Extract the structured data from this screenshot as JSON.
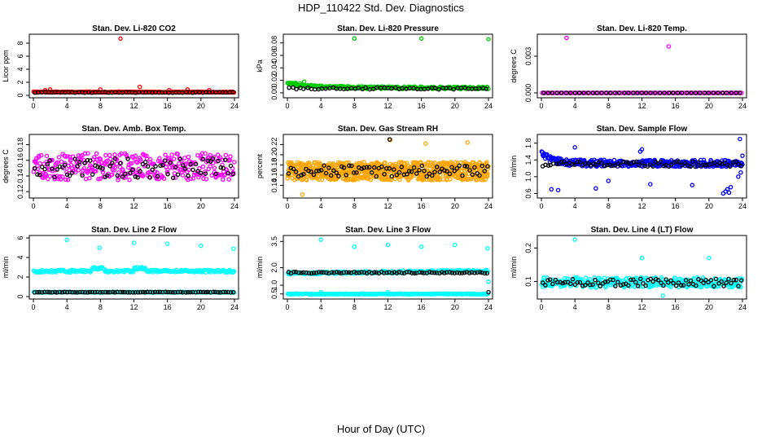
{
  "title": "HDP_110422  Std. Dev. Diagnostics",
  "xlabel": "Hour of Day (UTC)",
  "chart_data": [
    {
      "type": "scatter",
      "title": "Stan. Dev. Li-820 CO2",
      "ylabel": "Licor ppm",
      "xlim": [
        0,
        24
      ],
      "ylim": [
        0,
        9
      ],
      "xticks": [
        0,
        4,
        8,
        12,
        16,
        20,
        24
      ],
      "yticks": [
        0,
        2,
        4,
        6,
        8
      ],
      "series": [
        {
          "name": "all",
          "color": "#ff0000",
          "base": 0.5,
          "spread": 0.15,
          "count": 220,
          "x": [
            10.4,
            12.7,
            2.0,
            8.0,
            16.2,
            18.4,
            21.0,
            1.4
          ],
          "y": [
            8.7,
            1.3,
            0.9,
            0.9,
            0.8,
            0.9,
            0.8,
            0.8
          ]
        },
        {
          "name": "hourly",
          "color": "#000000",
          "base": 0.45,
          "spread": 0.1,
          "count": 60,
          "x": [],
          "y": []
        }
      ]
    },
    {
      "type": "scatter",
      "title": "Stan. Dev. Li-820 Pressure",
      "ylabel": "kPa",
      "xlim": [
        0,
        24
      ],
      "ylim": [
        -0.004,
        0.09
      ],
      "xticks": [
        0,
        4,
        8,
        12,
        16,
        20,
        24
      ],
      "yticks": [
        0.0,
        0.02,
        0.04,
        0.06,
        0.08
      ],
      "series": [
        {
          "name": "all",
          "color": "#00cc00",
          "base": 0.008,
          "spread": 0.004,
          "count": 260,
          "trend": "decay",
          "x": [
            8.0,
            16.0,
            24.0,
            1.0,
            2.0,
            1.5
          ],
          "y": [
            0.087,
            0.087,
            0.086,
            0.016,
            0.018,
            0.015
          ]
        },
        {
          "name": "hourly",
          "color": "#000000",
          "base": 0.007,
          "spread": 0.003,
          "count": 55,
          "x": [],
          "y": []
        }
      ]
    },
    {
      "type": "scatter",
      "title": "Stan. Dev. Li-820 Temp.",
      "ylabel": "degrees C",
      "xlim": [
        0,
        24
      ],
      "ylim": [
        -0.0002,
        0.0046
      ],
      "xticks": [
        0,
        4,
        8,
        12,
        16,
        20,
        24
      ],
      "yticks": [
        0.0,
        0.003
      ],
      "series": [
        {
          "name": "all",
          "color": "#ff00ff",
          "base": 0.0,
          "spread": 0.0,
          "count": 110,
          "x": [
            3.0,
            15.2
          ],
          "y": [
            0.0045,
            0.0038
          ]
        },
        {
          "name": "hourly",
          "color": "#000000",
          "base": 0.0,
          "spread": 0.0,
          "count": 45,
          "x": [],
          "y": []
        }
      ]
    },
    {
      "type": "scatter",
      "title": "Stan. Dev. Amb. Box Temp.",
      "ylabel": "degrees C",
      "xlim": [
        0,
        24
      ],
      "ylim": [
        0.115,
        0.19
      ],
      "xticks": [
        0,
        4,
        8,
        12,
        16,
        20,
        24
      ],
      "yticks": [
        0.12,
        0.14,
        0.16,
        0.18
      ],
      "series": [
        {
          "name": "all",
          "color": "#ff00ff",
          "base": 0.152,
          "spread": 0.034,
          "count": 330,
          "x": [],
          "y": []
        },
        {
          "name": "hourly",
          "color": "#000000",
          "base": 0.15,
          "spread": 0.025,
          "count": 80,
          "x": [],
          "y": []
        }
      ]
    },
    {
      "type": "scatter",
      "title": "Stan. Dev. Gas Stream RH",
      "ylabel": "percent",
      "xlim": [
        0,
        24
      ],
      "ylim": [
        0.12,
        0.235
      ],
      "xticks": [
        0,
        4,
        8,
        12,
        16,
        20,
        24
      ],
      "yticks": [
        0.14,
        0.16,
        0.18,
        0.2,
        0.22
      ],
      "series": [
        {
          "name": "all",
          "color": "#ffa500",
          "base": 0.168,
          "spread": 0.036,
          "count": 750,
          "x": [
            1.8,
            12.3,
            16.5,
            21.5
          ],
          "y": [
            0.122,
            0.229,
            0.222,
            0.224
          ]
        },
        {
          "name": "hourly",
          "color": "#000000",
          "base": 0.168,
          "spread": 0.022,
          "count": 80,
          "x": [
            12.2
          ],
          "y": [
            0.23
          ]
        }
      ]
    },
    {
      "type": "scatter",
      "title": "Stan. Dev. Sample Flow",
      "ylabel": "ml/min",
      "xlim": [
        0,
        24
      ],
      "ylim": [
        0.55,
        1.95
      ],
      "xticks": [
        0,
        4,
        8,
        12,
        16,
        20,
        24
      ],
      "yticks": [
        0.6,
        1.0,
        1.4,
        1.8
      ],
      "series": [
        {
          "name": "all",
          "color": "#0000ff",
          "base": 1.32,
          "spread": 0.16,
          "count": 330,
          "trend": "earlyhigh",
          "x": [
            23.7,
            1.2,
            2.0,
            6.5,
            8.0,
            13.0,
            18.0,
            21.7,
            22.0,
            22.2,
            22.4,
            22.6,
            23.5,
            23.8,
            24.0,
            12.0,
            4.0,
            11.8
          ],
          "y": [
            1.9,
            0.7,
            0.68,
            0.72,
            0.9,
            0.82,
            0.8,
            0.6,
            0.65,
            0.7,
            0.62,
            0.75,
            1.0,
            1.1,
            1.5,
            1.65,
            1.7,
            1.6
          ]
        },
        {
          "name": "hourly",
          "color": "#000000",
          "base": 1.3,
          "spread": 0.12,
          "count": 75,
          "x": [],
          "y": []
        }
      ]
    },
    {
      "type": "scatter",
      "title": "Stan. Dev. Line 2 Flow",
      "ylabel": "ml/min",
      "xlim": [
        0,
        24
      ],
      "ylim": [
        0,
        6
      ],
      "xticks": [
        0,
        4,
        8,
        12,
        16,
        20,
        24
      ],
      "yticks": [
        0,
        2,
        4,
        6
      ],
      "series": [
        {
          "name": "upper",
          "color": "#00ffff",
          "base": 2.6,
          "spread": 0.25,
          "count": 220,
          "trend": "bumps",
          "x": [
            4.0,
            7.9,
            12.0,
            16.0,
            20.0,
            23.9
          ],
          "y": [
            5.8,
            5.0,
            5.5,
            5.4,
            5.2,
            4.9
          ]
        },
        {
          "name": "lower",
          "color": "#00ffff",
          "base": 0.45,
          "spread": 0.06,
          "count": 200,
          "x": [],
          "y": []
        },
        {
          "name": "hourly",
          "color": "#000000",
          "base": 0.45,
          "spread": 0.05,
          "count": 80,
          "x": [],
          "y": []
        }
      ]
    },
    {
      "type": "scatter",
      "title": "Stan. Dev. Line 3 Flow",
      "ylabel": "ml/min",
      "xlim": [
        0,
        24
      ],
      "ylim": [
        0.35,
        3.7
      ],
      "xticks": [
        0,
        4,
        8,
        12,
        16,
        20,
        24
      ],
      "yticks": [
        0.5,
        1.0,
        2.0,
        3.5
      ],
      "ytick_text": [
        "0.5",
        "1.0",
        "2.0",
        "3.5"
      ],
      "series": [
        {
          "name": "upper",
          "color": "#00ffff",
          "base": 1.68,
          "spread": 0.14,
          "count": 220,
          "trend": "rise",
          "x": [
            4.0,
            8.0,
            12.0,
            16.0,
            20.0,
            23.9
          ],
          "y": [
            3.6,
            3.2,
            3.3,
            3.2,
            3.3,
            3.1
          ]
        },
        {
          "name": "lower",
          "color": "#00ffff",
          "base": 0.5,
          "spread": 0.05,
          "count": 220,
          "x": [
            4.0,
            12.0,
            24.0
          ],
          "y": [
            0.6,
            0.6,
            1.2
          ]
        },
        {
          "name": "hourly",
          "color": "#000000",
          "base": 1.72,
          "spread": 0.08,
          "count": 80,
          "x": [
            24.0
          ],
          "y": [
            0.6
          ]
        }
      ]
    },
    {
      "type": "scatter",
      "title": "Stan. Dev. Line 4 (LT) Flow",
      "ylabel": "ml/min",
      "xlim": [
        0,
        24
      ],
      "ylim": [
        0.055,
        0.23
      ],
      "xticks": [
        0,
        4,
        8,
        12,
        16,
        20,
        24
      ],
      "yticks": [
        0.1,
        0.2
      ],
      "series": [
        {
          "name": "all",
          "color": "#00ffff",
          "base": 0.097,
          "spread": 0.03,
          "count": 330,
          "x": [
            4.0,
            12.0,
            20.0,
            14.5
          ],
          "y": [
            0.225,
            0.17,
            0.17,
            0.058
          ]
        },
        {
          "name": "hourly",
          "color": "#000000",
          "base": 0.097,
          "spread": 0.022,
          "count": 80,
          "x": [],
          "y": []
        }
      ]
    }
  ]
}
